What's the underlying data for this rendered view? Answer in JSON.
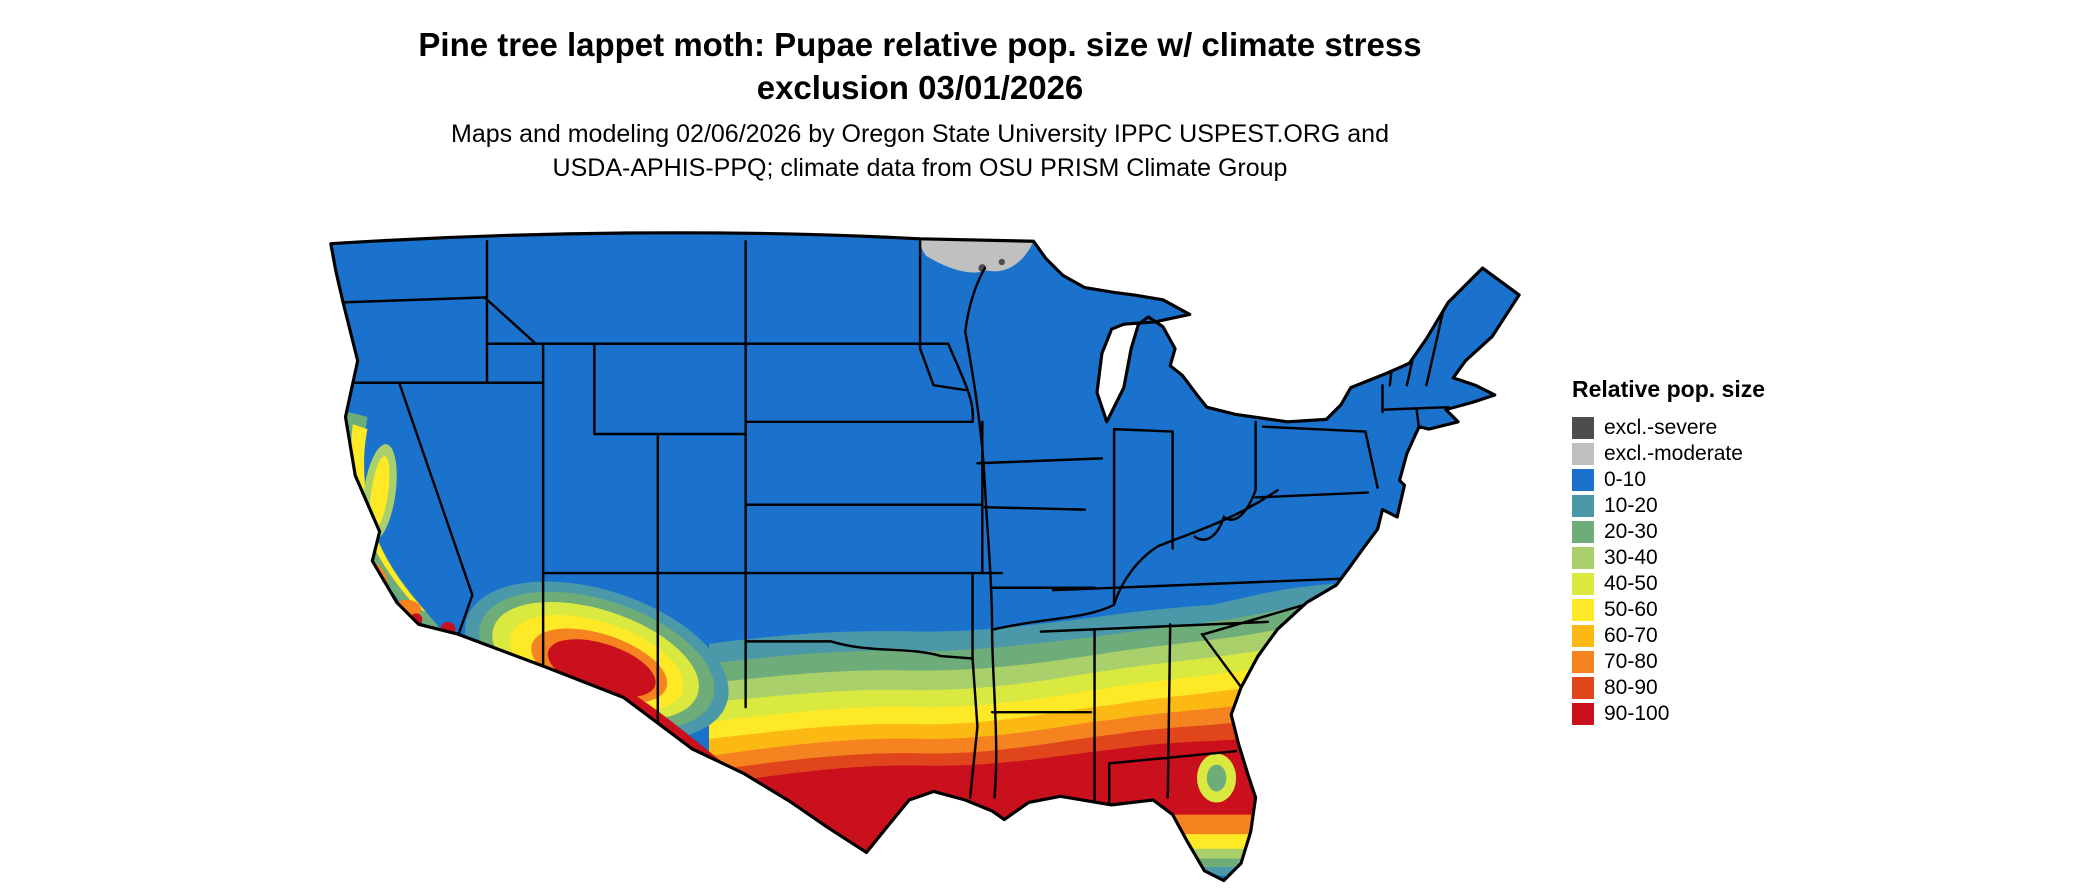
{
  "title": {
    "lines": [
      "Pine tree lappet moth: Pupae relative pop. size w/ climate stress",
      "exclusion 03/01/2026"
    ]
  },
  "subtitle": {
    "lines": [
      "Maps and modeling 02/06/2026 by Oregon State University IPPC USPEST.ORG and",
      "USDA-APHIS-PPQ; climate data from OSU PRISM Climate Group"
    ]
  },
  "legend": {
    "title": "Relative pop. size",
    "items": [
      {
        "label": "excl.-severe",
        "color": "#4d4d4d"
      },
      {
        "label": "excl.-moderate",
        "color": "#c0c0c0"
      },
      {
        "label": "0-10",
        "color": "#1a72cd"
      },
      {
        "label": "10-20",
        "color": "#4a98a8"
      },
      {
        "label": "20-30",
        "color": "#6ead79"
      },
      {
        "label": "30-40",
        "color": "#a9d06a"
      },
      {
        "label": "40-50",
        "color": "#d9e93f"
      },
      {
        "label": "50-60",
        "color": "#fee926"
      },
      {
        "label": "60-70",
        "color": "#fdb913"
      },
      {
        "label": "70-80",
        "color": "#f5831f"
      },
      {
        "label": "80-90",
        "color": "#e0451c"
      },
      {
        "label": "90-100",
        "color": "#c9101c"
      }
    ]
  },
  "map": {
    "name": "Contiguous United States"
  }
}
